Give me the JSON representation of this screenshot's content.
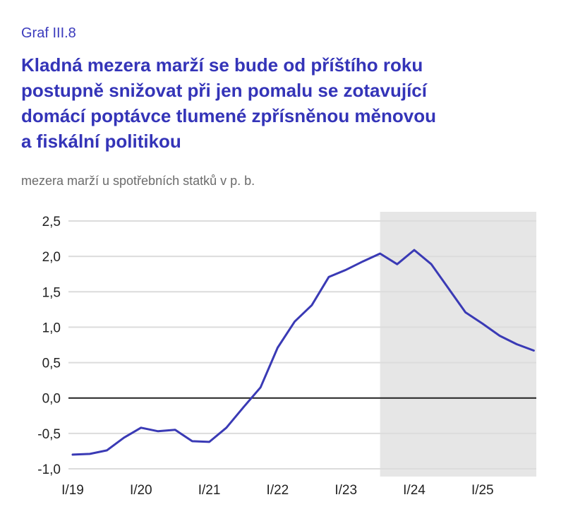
{
  "header": {
    "label": "Graf III.8",
    "title_lines": [
      "Kladná mezera marží se bude od příštího roku",
      "postupně snižovat při jen pomalu se zotavující",
      "domácí poptávce tlumené zpřísněnou měnovou",
      "a fiskální politikou"
    ],
    "subtitle": "mezera marží u spotřebních statků v p. b."
  },
  "colors": {
    "line": "#3a3ab5",
    "title": "#3434b8",
    "forecast_band": "#e6e6e6",
    "grid": "#dcdcdc",
    "zero_line": "#222222"
  },
  "chart_data": {
    "type": "line",
    "title": "Kladná mezera marží se bude od příštího roku postupně snižovat při jen pomalu se zotavující domácí poptávce tlumené zpřísněnou měnovou a fiskální politikou",
    "ylabel": "mezera marží u spotřebních statků v p. b.",
    "ylim": [
      -1.0,
      2.5
    ],
    "yticks": [
      2.5,
      2.0,
      1.5,
      1.0,
      0.5,
      0.0,
      -0.5,
      -1.0
    ],
    "ytick_labels": [
      "2,5",
      "2,0",
      "1,5",
      "1,0",
      "0,5",
      "0,0",
      "-0,5",
      "-1,0"
    ],
    "xtick_labels": [
      "I/19",
      "I/20",
      "I/21",
      "I/22",
      "I/23",
      "I/24",
      "I/25"
    ],
    "x": [
      "I/19",
      "II/19",
      "III/19",
      "IV/19",
      "I/20",
      "II/20",
      "III/20",
      "IV/20",
      "I/21",
      "II/21",
      "III/21",
      "IV/21",
      "I/22",
      "II/22",
      "III/22",
      "IV/22",
      "I/23",
      "II/23",
      "III/23",
      "IV/23",
      "I/24",
      "II/24",
      "III/24",
      "IV/24",
      "I/25",
      "II/25",
      "III/25",
      "IV/25"
    ],
    "series": [
      {
        "values": [
          -0.8,
          -0.79,
          -0.74,
          -0.56,
          -0.42,
          -0.47,
          -0.45,
          -0.61,
          -0.62,
          -0.42,
          -0.13,
          0.15,
          0.71,
          1.08,
          1.31,
          1.71,
          1.81,
          1.93,
          2.04,
          1.89,
          2.09,
          1.89,
          1.55,
          1.21,
          1.05,
          0.88,
          0.76,
          0.67
        ]
      }
    ],
    "forecast_start": "III/23",
    "grid": true
  }
}
